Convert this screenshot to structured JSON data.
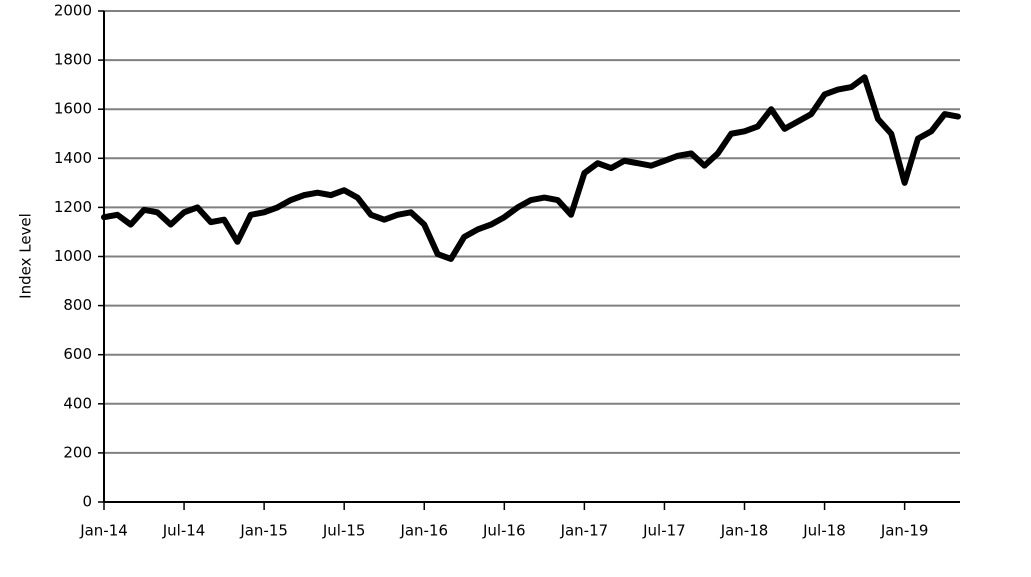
{
  "chart_data": {
    "type": "line",
    "y_label": "Index Level",
    "x": [
      "2014-01",
      "2014-02",
      "2014-03",
      "2014-04",
      "2014-05",
      "2014-06",
      "2014-07",
      "2014-08",
      "2014-09",
      "2014-10",
      "2014-11",
      "2014-12",
      "2015-01",
      "2015-02",
      "2015-03",
      "2015-04",
      "2015-05",
      "2015-06",
      "2015-07",
      "2015-08",
      "2015-09",
      "2015-10",
      "2015-11",
      "2015-12",
      "2016-01",
      "2016-02",
      "2016-03",
      "2016-04",
      "2016-05",
      "2016-06",
      "2016-07",
      "2016-08",
      "2016-09",
      "2016-10",
      "2016-11",
      "2016-12",
      "2017-01",
      "2017-02",
      "2017-03",
      "2017-04",
      "2017-05",
      "2017-06",
      "2017-07",
      "2017-08",
      "2017-09",
      "2017-10",
      "2017-11",
      "2017-12",
      "2018-01",
      "2018-02",
      "2018-03",
      "2018-04",
      "2018-05",
      "2018-06",
      "2018-07",
      "2018-08",
      "2018-09",
      "2018-10",
      "2018-11",
      "2018-12",
      "2019-01",
      "2019-02",
      "2019-03",
      "2019-04",
      "2019-05"
    ],
    "series": [
      {
        "color": "#000000",
        "values": [
          1160,
          1170,
          1130,
          1190,
          1180,
          1130,
          1180,
          1200,
          1140,
          1150,
          1060,
          1170,
          1180,
          1200,
          1230,
          1250,
          1260,
          1250,
          1270,
          1240,
          1170,
          1150,
          1170,
          1180,
          1130,
          1010,
          990,
          1080,
          1110,
          1130,
          1160,
          1200,
          1230,
          1240,
          1230,
          1170,
          1340,
          1380,
          1360,
          1390,
          1380,
          1370,
          1390,
          1410,
          1420,
          1370,
          1420,
          1500,
          1510,
          1530,
          1600,
          1520,
          1550,
          1580,
          1660,
          1680,
          1690,
          1730,
          1560,
          1500,
          1300,
          1480,
          1510,
          1580,
          1570
        ]
      }
    ],
    "xlim": [
      "2014-01",
      "2019-05"
    ],
    "xticks": [
      {
        "value": "2014-01",
        "label": "Jan-14"
      },
      {
        "value": "2014-07",
        "label": "Jul-14"
      },
      {
        "value": "2015-01",
        "label": "Jan-15"
      },
      {
        "value": "2015-07",
        "label": "Jul-15"
      },
      {
        "value": "2016-01",
        "label": "Jan-16"
      },
      {
        "value": "2016-07",
        "label": "Jul-16"
      },
      {
        "value": "2017-01",
        "label": "Jan-17"
      },
      {
        "value": "2017-07",
        "label": "Jul-17"
      },
      {
        "value": "2018-01",
        "label": "Jan-18"
      },
      {
        "value": "2018-07",
        "label": "Jul-18"
      },
      {
        "value": "2019-01",
        "label": "Jan-19"
      }
    ],
    "ylim": [
      0,
      2000
    ],
    "yticks": [
      0,
      200,
      400,
      600,
      800,
      1000,
      1200,
      1400,
      1600,
      1800,
      2000
    ],
    "grid": true
  }
}
